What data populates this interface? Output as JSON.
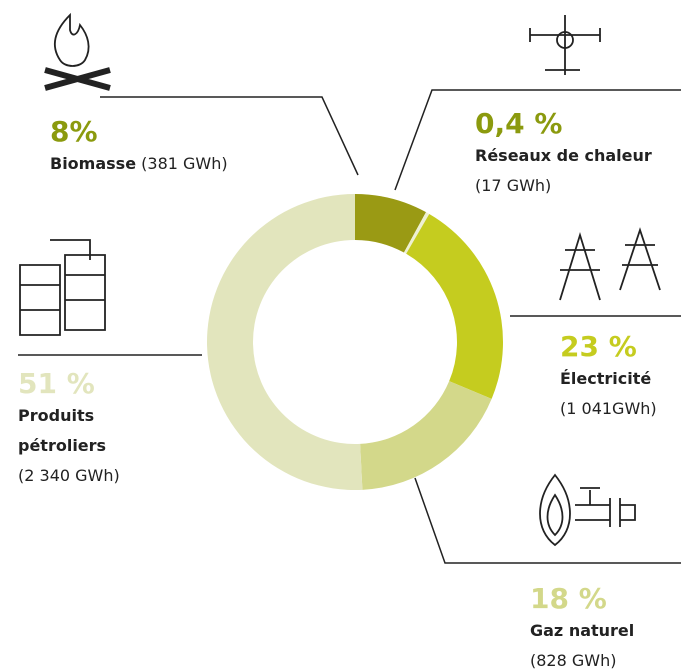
{
  "chart_data": {
    "type": "donut",
    "categories": [
      "Biomasse",
      "Réseaux de chaleur",
      "Électricité",
      "Gaz naturel",
      "Produits pétroliers"
    ],
    "values": [
      8,
      0.4,
      23,
      18,
      51
    ],
    "value_labels": [
      "8%",
      "0,4 %",
      "23 %",
      "18 %",
      "51 %"
    ],
    "details": [
      "(381 GWh)",
      "(17 GWh)",
      "(1 041GWh)",
      "(828 GWh)",
      "(2 340 GWh)"
    ],
    "colors": [
      "#9a9a14",
      "#eef0d2",
      "#c5cc1f",
      "#d3d88a",
      "#e2e5bd"
    ],
    "label_colors": [
      "#8b9a0e",
      "#8b9a0e",
      "#c5cc1f",
      "#d3d88a",
      "#e2e5bd"
    ]
  }
}
